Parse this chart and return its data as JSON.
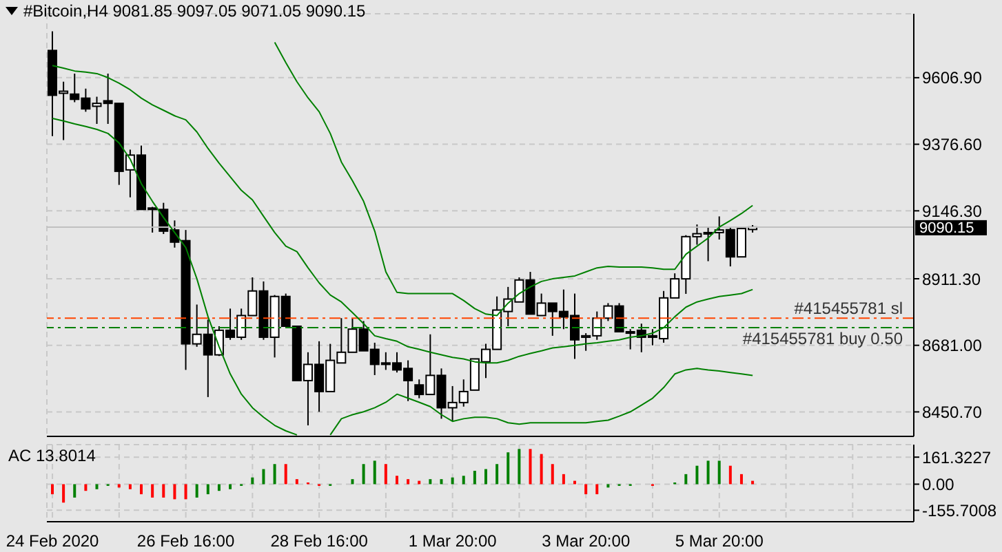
{
  "chart_data": [
    {
      "type": "candlestick",
      "title": "#Bitcoin,H4  9081.85 9097.05 9071.05 9090.15",
      "categories": [
        null,
        null,
        null,
        null,
        null,
        null,
        null,
        null,
        null,
        null,
        null,
        null,
        null,
        null,
        null,
        null,
        null,
        null,
        null,
        null,
        null,
        null,
        null,
        null,
        null,
        null,
        null,
        null,
        null,
        null,
        null,
        null,
        null,
        null,
        null,
        null,
        null,
        null,
        null,
        null,
        null,
        null,
        null,
        null,
        null,
        null,
        null,
        null,
        null,
        null,
        null,
        null,
        null,
        null,
        null,
        null,
        null,
        null,
        null,
        null,
        null,
        null,
        null,
        null,
        null,
        null,
        null,
        null,
        null,
        null,
        null,
        null,
        null,
        null,
        null,
        null,
        null,
        null
      ],
      "ohlc": [
        [
          9701,
          9767,
          9405,
          9546
        ],
        [
          9553,
          9593,
          9391,
          9560
        ],
        [
          9550,
          9621,
          9522,
          9532
        ],
        [
          9536,
          9569,
          9489,
          9499
        ],
        [
          9508,
          9541,
          9447,
          9518
        ],
        [
          9527,
          9621,
          9447,
          9518
        ],
        [
          9518,
          9518,
          9236,
          9283
        ],
        [
          9288,
          9358,
          9193,
          9339
        ],
        [
          9339,
          9372,
          9151,
          9151
        ],
        [
          9156,
          9160,
          9071,
          9151
        ],
        [
          9151,
          9174,
          9066,
          9076
        ],
        [
          9080,
          9113,
          9019,
          9038
        ],
        [
          9043,
          9080,
          8596,
          8686
        ],
        [
          8686,
          8822,
          8676,
          8719
        ],
        [
          8719,
          8770,
          8502,
          8648
        ],
        [
          8648,
          8747,
          8644,
          8733
        ],
        [
          8733,
          8808,
          8700,
          8709
        ],
        [
          8709,
          8808,
          8700,
          8784
        ],
        [
          8784,
          8916,
          8784,
          8869
        ],
        [
          8869,
          8902,
          8700,
          8709
        ],
        [
          8709,
          8855,
          8639,
          8850
        ],
        [
          8850,
          8860,
          8747,
          8747
        ],
        [
          8747,
          8747,
          8559,
          8559
        ],
        [
          8559,
          8657,
          8404,
          8615
        ],
        [
          8615,
          8695,
          8451,
          8521
        ],
        [
          8521,
          8686,
          8521,
          8629
        ],
        [
          8620,
          8775,
          8620,
          8657
        ],
        [
          8657,
          8775,
          8657,
          8737
        ],
        [
          8737,
          8765,
          8662,
          8662
        ],
        [
          8667,
          8690,
          8578,
          8615
        ],
        [
          8620,
          8657,
          8596,
          8615
        ],
        [
          8620,
          8657,
          8587,
          8596
        ],
        [
          8601,
          8629,
          8488,
          8559
        ],
        [
          8544,
          8563,
          8498,
          8511
        ],
        [
          8511,
          8719,
          8511,
          8577
        ],
        [
          8577,
          8601,
          8427,
          8465
        ],
        [
          8465,
          8540,
          8418,
          8483
        ],
        [
          8483,
          8563,
          8469,
          8521
        ],
        [
          8526,
          8634,
          8526,
          8634
        ],
        [
          8624,
          8686,
          8568,
          8667
        ],
        [
          8667,
          8850,
          8667,
          8803
        ],
        [
          8798,
          8883,
          8747,
          8841
        ],
        [
          8831,
          8916,
          8831,
          8907
        ],
        [
          8907,
          8935,
          8789,
          8789
        ],
        [
          8784,
          8860,
          8784,
          8827
        ],
        [
          8827,
          8827,
          8714,
          8798
        ],
        [
          8798,
          8874,
          8737,
          8779
        ],
        [
          8784,
          8860,
          8634,
          8700
        ],
        [
          8709,
          8723,
          8662,
          8714
        ],
        [
          8714,
          8798,
          8700,
          8775
        ],
        [
          8775,
          8827,
          8765,
          8817
        ],
        [
          8817,
          8827,
          8728,
          8728
        ],
        [
          8728,
          8737,
          8667,
          8723
        ],
        [
          8733,
          8756,
          8657,
          8709
        ],
        [
          8714,
          8737,
          8681,
          8709
        ],
        [
          8704,
          8869,
          8690,
          8845
        ],
        [
          8845,
          8930,
          8845,
          8911
        ],
        [
          8911,
          9062,
          8859,
          9057
        ],
        [
          9057,
          9099,
          9029,
          9067
        ],
        [
          9067,
          9090,
          8972,
          9071
        ],
        [
          9071,
          9127,
          9047,
          9080
        ],
        [
          9081,
          9090,
          8954,
          8987
        ],
        [
          8987,
          9090,
          8987,
          9085
        ],
        [
          9081.85,
          9097.05,
          9071.05,
          9090.15
        ],
        null,
        null,
        null,
        null,
        null,
        null,
        null,
        null,
        null,
        null,
        null,
        null,
        null,
        null
      ],
      "series": [
        {
          "type": "line",
          "color": "#008000",
          "values": [
            null,
            null,
            null,
            null,
            null,
            null,
            null,
            null,
            null,
            null,
            null,
            null,
            null,
            null,
            null,
            null,
            null,
            null,
            null,
            null,
            9729,
            9659,
            9593,
            9537,
            9489,
            9414,
            9315,
            9250,
            9179,
            9076,
            8935,
            8864,
            8860,
            8860,
            8860,
            8860,
            8860,
            8836,
            8808,
            8789,
            8784,
            8827,
            8860,
            8883,
            8902,
            8911,
            8916,
            8921,
            8935,
            8949,
            8954,
            8952,
            8952,
            8952,
            8949,
            8944,
            8944,
            8996,
            9024,
            9052,
            9090,
            9113,
            9137,
            9165,
            null,
            null,
            null,
            null,
            null,
            null,
            null,
            null,
            null,
            null,
            null,
            null,
            null,
            null
          ]
        },
        {
          "type": "line",
          "color": "#008000",
          "values": [
            9649,
            9640,
            9630,
            9626,
            9621,
            9607,
            9588,
            9565,
            9536,
            9513,
            9494,
            9475,
            9461,
            9419,
            9362,
            9311,
            9264,
            9217,
            9184,
            9127,
            9071,
            9024,
            9005,
            8949,
            8897,
            8855,
            8831,
            8794,
            8756,
            8714,
            8704,
            8695,
            8676,
            8667,
            8657,
            8648,
            8639,
            8634,
            8624,
            8620,
            8620,
            8629,
            8643,
            8653,
            8662,
            8672,
            8676,
            8681,
            8686,
            8690,
            8695,
            8700,
            8709,
            8714,
            8723,
            8742,
            8780,
            8813,
            8831,
            8841,
            8850,
            8855,
            8860,
            8874,
            null,
            null,
            null,
            null,
            null,
            null,
            null,
            null,
            null,
            null,
            null,
            null,
            null,
            null
          ]
        },
        {
          "type": "line",
          "color": "#008000",
          "values": [
            9466,
            9457,
            9447,
            9438,
            9428,
            9414,
            9381,
            9325,
            9240,
            9179,
            9123,
            9071,
            9019,
            8911,
            8780,
            8676,
            8582,
            8512,
            8465,
            8432,
            8404,
            8385,
            8371,
            null,
            null,
            8371,
            8427,
            8441,
            8451,
            8465,
            8484,
            8512,
            8498,
            8484,
            8469,
            8441,
            8418,
            8427,
            8432,
            8432,
            8427,
            8413,
            8408,
            8413,
            8413,
            8413,
            8413,
            8413,
            8413,
            8418,
            8422,
            8436,
            8451,
            8474,
            8498,
            8535,
            8582,
            8596,
            8601,
            8596,
            8592,
            8587,
            8582,
            8577,
            null,
            null,
            null,
            null,
            null,
            null,
            null,
            null,
            null,
            null,
            null,
            null,
            null,
            null
          ]
        }
      ],
      "ylim": [
        8366,
        9828
      ],
      "yticks": [
        {
          "value": 8450.7,
          "label": "8450.70"
        },
        {
          "value": 8681,
          "label": "8681.00"
        },
        {
          "value": 8911.3,
          "label": "8911.30"
        },
        {
          "value": 9146.3,
          "label": "9146.30"
        },
        {
          "value": 9376.6,
          "label": "9376.60"
        },
        {
          "value": 9606.9,
          "label": "9606.90"
        }
      ],
      "ref_lines": [
        {
          "axis": "y",
          "value": 8775,
          "label": "#415455781 sl",
          "color": "#ff4500",
          "line_style": "dashed"
        },
        {
          "axis": "y",
          "value": 8742,
          "label": "#415455781 buy 0.50",
          "color": "#008000",
          "line_style": "dashed"
        },
        {
          "axis": "y",
          "value": 9090.15,
          "label": "9090.15",
          "color": "#c0c0c0",
          "line_style": "solid"
        }
      ],
      "grid": true,
      "tick_labels": "y"
    },
    {
      "type": "bar",
      "annotations": [
        "AC 13.8014"
      ],
      "categories": [
        "24 Feb 2020",
        null,
        null,
        null,
        null,
        null,
        null,
        null,
        null,
        null,
        null,
        null,
        "26 Feb 16:00",
        null,
        null,
        null,
        null,
        null,
        null,
        null,
        null,
        null,
        null,
        null,
        "28 Feb 16:00",
        null,
        null,
        null,
        null,
        null,
        null,
        null,
        null,
        null,
        null,
        null,
        "1 Mar 20:00",
        null,
        null,
        null,
        null,
        null,
        null,
        null,
        null,
        null,
        null,
        null,
        "3 Mar 20:00",
        null,
        null,
        null,
        null,
        null,
        null,
        null,
        null,
        null,
        null,
        null,
        "5 Mar 20:00",
        null,
        null,
        null,
        null,
        null,
        null,
        null,
        null,
        null,
        null,
        null,
        null,
        null,
        null,
        null,
        null,
        null
      ],
      "values": [
        -60,
        -110,
        -80,
        -40,
        -30,
        -10,
        -20,
        -30,
        -60,
        -80,
        -80,
        -90,
        -90,
        -80,
        -60,
        -40,
        -30,
        -10,
        40,
        90,
        120,
        120,
        30,
        10,
        -10,
        -10,
        0,
        30,
        120,
        140,
        120,
        50,
        30,
        20,
        30,
        30,
        40,
        50,
        80,
        90,
        120,
        190,
        210,
        210,
        180,
        120,
        60,
        20,
        -60,
        -60,
        -20,
        -10,
        -10,
        0,
        -10,
        0,
        10,
        60,
        110,
        140,
        140,
        110,
        60,
        20,
        null,
        null,
        null,
        null,
        null,
        null,
        null,
        null,
        null,
        null,
        null,
        null,
        null,
        null
      ],
      "colors": [
        "#ff0000",
        "#ff0000",
        "#008000",
        "#ff0000",
        "#008000",
        "#008000",
        "#ff0000",
        "#ff0000",
        "#ff0000",
        "#ff0000",
        "#ff0000",
        "#ff0000",
        "#ff0000",
        "#008000",
        "#008000",
        "#008000",
        "#008000",
        "#008000",
        "#008000",
        "#008000",
        "#008000",
        "#ff0000",
        "#ff0000",
        "#ff0000",
        "#ff0000",
        "#008000",
        "#008000",
        "#008000",
        "#008000",
        "#008000",
        "#ff0000",
        "#ff0000",
        "#ff0000",
        "#ff0000",
        "#008000",
        "#008000",
        "#008000",
        "#008000",
        "#008000",
        "#008000",
        "#008000",
        "#008000",
        "#008000",
        "#ff0000",
        "#ff0000",
        "#ff0000",
        "#ff0000",
        "#ff0000",
        "#ff0000",
        "#ff0000",
        "#008000",
        "#008000",
        "#008000",
        "#ff0000",
        "#ff0000",
        "#008000",
        "#008000",
        "#008000",
        "#008000",
        "#008000",
        "#008000",
        "#ff0000",
        "#ff0000",
        "#ff0000",
        "#ff0000",
        "#ff0000",
        "#ff0000",
        "#ff0000",
        "#ff0000",
        "#ff0000",
        "#ff0000",
        "#ff0000",
        "#ff0000",
        "#ff0000",
        "#ff0000",
        "#ff0000",
        "#ff0000",
        "#ff0000"
      ],
      "ylim": [
        -224,
        236
      ],
      "yticks": [
        {
          "value": -155.7008,
          "label": "-155.7008"
        },
        {
          "value": 0,
          "label": "0.00"
        },
        {
          "value": 161.3227,
          "label": "161.3227"
        }
      ],
      "grid": true
    }
  ]
}
